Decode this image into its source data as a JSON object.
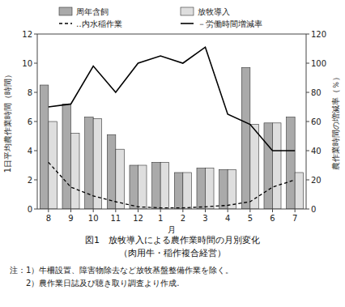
{
  "chart_data": {
    "type": "bar",
    "title": "図1　放牧導入による農作業時間の月別変化",
    "subtitle": "（肉用牛・稲作複合経営）",
    "annotations": [
      "注：1）牛柵設置、障害物除去など放牧基盤整備作業を除く。",
      "　　2）農作業日誌及び聴き取り調査より作成."
    ],
    "x_label": "月",
    "y_label": "1日平均農作業時間（時間）",
    "y2_label": "農作業時間の増減率（％）",
    "categories": [
      "8",
      "9",
      "10",
      "11",
      "12",
      "1",
      "2",
      "3",
      "4",
      "5",
      "6",
      "7"
    ],
    "series": [
      {
        "name": "周年含飼",
        "type": "bar",
        "color": "#aaaaaa",
        "values": [
          8.5,
          7.2,
          6.3,
          5.1,
          3.0,
          3.2,
          2.5,
          2.8,
          2.7,
          9.7,
          5.9,
          6.3
        ]
      },
      {
        "name": "放牧導入",
        "type": "bar",
        "color": "#dedede",
        "values": [
          6.0,
          5.2,
          6.2,
          4.1,
          3.0,
          3.2,
          2.5,
          2.8,
          2.7,
          5.8,
          5.9,
          2.5
        ]
      },
      {
        "name": "‥内水稲作業",
        "type": "line",
        "color": "#000000",
        "line_style": "dashed",
        "values": [
          3.2,
          1.5,
          0.9,
          0.5,
          0.15,
          0.08,
          0.08,
          0.15,
          0.25,
          0.5,
          1.5,
          2.0
        ]
      },
      {
        "name": "－労働時間増減率",
        "type": "line",
        "axis": "y2",
        "color": "#000000",
        "line_style": "solid",
        "values": [
          70,
          72,
          98,
          80,
          100,
          105,
          100,
          111,
          65,
          58,
          40,
          40
        ]
      }
    ],
    "ylim": [
      0,
      12
    ],
    "yticks": [
      0,
      2,
      4,
      6,
      8,
      10,
      12
    ],
    "y2lim": [
      0,
      120
    ],
    "y2ticks": [
      0,
      20,
      40,
      60,
      80,
      100,
      120
    ],
    "grid": false,
    "legend": "top"
  }
}
